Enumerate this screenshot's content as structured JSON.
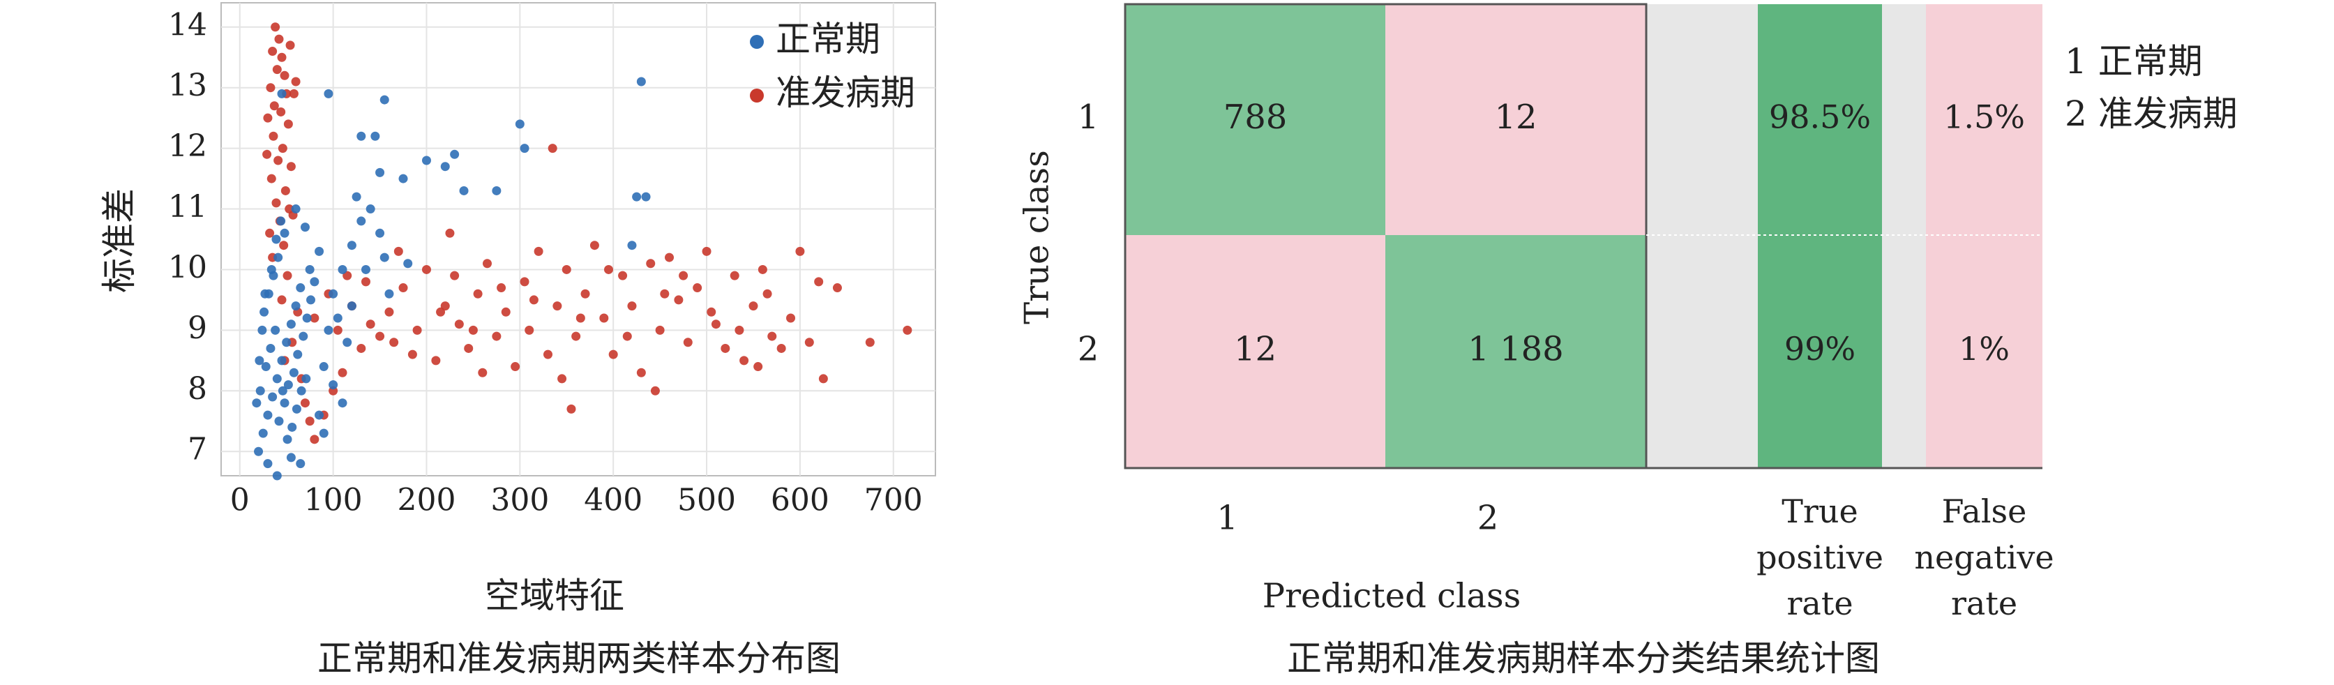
{
  "chart_data": [
    {
      "type": "scatter",
      "xlabel": "空域特征",
      "ylabel": "标准差",
      "caption": "正常期和准发病期两类样本分布图",
      "xlim": [
        -20,
        745
      ],
      "ylim": [
        6.6,
        14.4
      ],
      "xticks": [
        0,
        100,
        200,
        300,
        400,
        500,
        600,
        700
      ],
      "yticks": [
        7,
        8,
        9,
        10,
        11,
        12,
        13,
        14
      ],
      "grid": true,
      "legend": "upper right",
      "series": [
        {
          "name": "正常期",
          "color": "#2f6fb6",
          "x": [
            20,
            25,
            30,
            35,
            40,
            45,
            50,
            55,
            60,
            65,
            22,
            28,
            33,
            38,
            42,
            48,
            52,
            58,
            62,
            68,
            72,
            76,
            80,
            26,
            31,
            36,
            41,
            46,
            51,
            56,
            61,
            66,
            71,
            18,
            21,
            24,
            27,
            34,
            39,
            44,
            30,
            40,
            65,
            85,
            90,
            95,
            100,
            110,
            120,
            130,
            140,
            125,
            150,
            155,
            160,
            180,
            200,
            220,
            230,
            240,
            275,
            300,
            305,
            425,
            435,
            430,
            420,
            95,
            155,
            130,
            145,
            150,
            175,
            70,
            75,
            85,
            105,
            115,
            120,
            135,
            110,
            100,
            90,
            55,
            48,
            60,
            45
          ],
          "values": [
            7.0,
            7.3,
            7.6,
            7.9,
            8.2,
            8.5,
            8.8,
            9.1,
            9.4,
            9.7,
            8.0,
            8.4,
            8.7,
            9.0,
            7.5,
            7.8,
            8.1,
            8.3,
            8.6,
            8.9,
            9.2,
            9.5,
            9.8,
            9.3,
            9.6,
            9.9,
            10.2,
            8.0,
            7.2,
            7.4,
            7.7,
            8.0,
            8.2,
            7.8,
            8.5,
            9.0,
            9.6,
            10.0,
            10.5,
            10.8,
            6.8,
            6.6,
            6.8,
            7.6,
            8.4,
            9.0,
            9.6,
            10.0,
            10.4,
            10.8,
            11.0,
            11.2,
            10.6,
            10.2,
            9.6,
            10.1,
            11.8,
            11.7,
            11.9,
            11.3,
            11.3,
            12.4,
            12.0,
            11.2,
            11.2,
            13.1,
            10.4,
            12.9,
            12.8,
            12.2,
            12.2,
            11.6,
            11.5,
            10.7,
            10.0,
            10.3,
            9.2,
            8.8,
            9.4,
            10.0,
            7.8,
            8.1,
            7.3,
            6.9,
            10.6,
            11.0,
            12.9
          ]
        },
        {
          "name": "准发病期",
          "color": "#c9392c",
          "x": [
            38,
            42,
            35,
            45,
            40,
            48,
            33,
            50,
            37,
            44,
            52,
            36,
            46,
            41,
            55,
            34,
            49,
            39,
            53,
            43,
            32,
            47,
            58,
            30,
            60,
            54,
            29,
            57,
            35,
            51,
            45,
            62,
            56,
            48,
            66,
            70,
            75,
            80,
            90,
            100,
            110,
            80,
            95,
            105,
            120,
            135,
            150,
            160,
            175,
            190,
            200,
            210,
            220,
            225,
            235,
            245,
            255,
            265,
            275,
            285,
            295,
            305,
            310,
            320,
            330,
            335,
            340,
            350,
            355,
            360,
            370,
            380,
            390,
            400,
            410,
            420,
            430,
            440,
            445,
            450,
            460,
            470,
            480,
            490,
            500,
            510,
            520,
            530,
            540,
            550,
            560,
            570,
            580,
            600,
            610,
            620,
            625,
            640,
            675,
            715,
            260,
            230,
            185,
            140,
            130,
            115,
            170,
            315,
            345,
            395,
            455,
            505,
            535,
            590,
            280,
            250,
            215,
            165,
            365,
            415,
            475,
            555,
            565
          ],
          "values": [
            14.0,
            13.8,
            13.6,
            13.5,
            13.3,
            13.2,
            13.0,
            12.9,
            12.7,
            12.6,
            12.4,
            12.2,
            12.0,
            11.8,
            11.7,
            11.5,
            11.3,
            11.1,
            11.0,
            10.8,
            10.6,
            10.4,
            12.9,
            12.5,
            13.1,
            13.7,
            11.9,
            10.9,
            10.2,
            9.9,
            9.5,
            9.3,
            8.8,
            8.5,
            8.2,
            7.8,
            7.5,
            7.2,
            7.6,
            8.0,
            8.3,
            9.2,
            9.6,
            9.0,
            9.4,
            9.8,
            8.9,
            9.3,
            9.7,
            9.0,
            10.0,
            8.5,
            9.4,
            10.6,
            9.1,
            8.7,
            9.6,
            10.1,
            8.9,
            9.3,
            8.4,
            9.8,
            9.0,
            10.3,
            8.6,
            12.0,
            9.4,
            10.0,
            7.7,
            8.9,
            9.6,
            10.4,
            9.2,
            8.6,
            9.9,
            9.4,
            8.3,
            10.1,
            8.0,
            9.0,
            10.2,
            9.5,
            8.8,
            9.7,
            10.3,
            9.1,
            8.7,
            9.9,
            8.5,
            9.4,
            10.0,
            8.9,
            8.7,
            10.3,
            8.8,
            9.8,
            8.2,
            9.7,
            8.8,
            9.0,
            8.3,
            9.9,
            8.6,
            9.1,
            8.7,
            9.9,
            10.3,
            9.5,
            8.2,
            10.0,
            9.6,
            9.3,
            9.0,
            9.2,
            9.7,
            9.0,
            9.3,
            8.8,
            9.2,
            8.9,
            9.9,
            8.4,
            9.6
          ]
        }
      ]
    },
    {
      "type": "confusion-matrix",
      "ylabel": "True class",
      "xlabel": "Predicted class",
      "caption": "正常期和准发病期样本分类结果统计图",
      "classes": [
        "1",
        "2"
      ],
      "matrix": [
        [
          788,
          12
        ],
        [
          12,
          1188
        ]
      ],
      "matrix_labels": [
        [
          "788",
          "12"
        ],
        [
          "12",
          "1 188"
        ]
      ],
      "correct_color": "#7ec498",
      "error_color": "#f6d0d7",
      "rate_columns": [
        {
          "name": "True positive rate",
          "values": [
            98.5,
            99
          ],
          "value_labels": [
            "98.5%",
            "99%"
          ],
          "color": "#5fb57f"
        },
        {
          "name": "False negative rate",
          "values": [
            1.5,
            1
          ],
          "value_labels": [
            "1.5%",
            "1%"
          ],
          "color": "#f6d0d7"
        }
      ],
      "legend": [
        "1 正常期",
        "2 准发病期"
      ]
    }
  ]
}
